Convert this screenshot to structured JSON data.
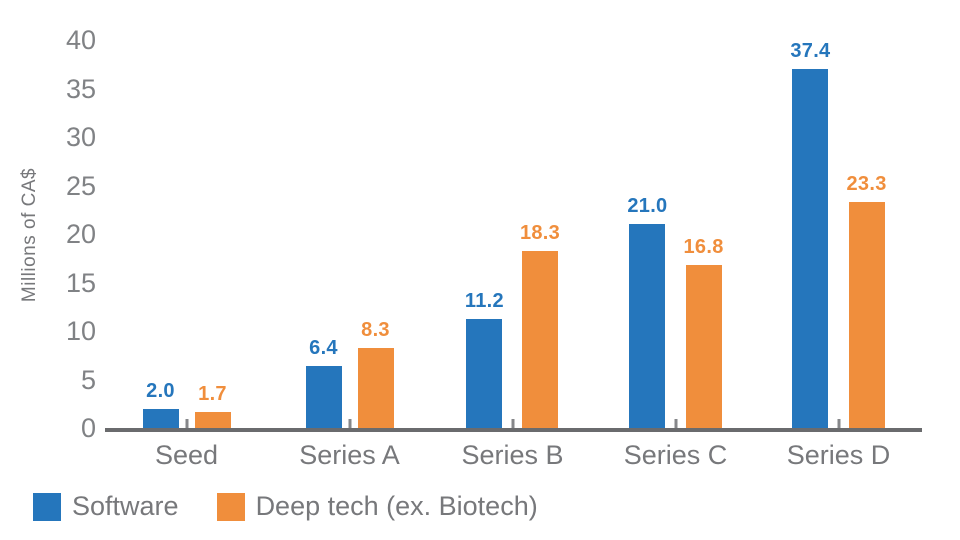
{
  "chart_data": {
    "type": "bar",
    "title": "",
    "categories": [
      "Seed",
      "Series A",
      "Series B",
      "Series C",
      "Series D"
    ],
    "series": [
      {
        "name": "Software",
        "color": "#2576BC",
        "values": [
          2.0,
          6.4,
          11.2,
          21.0,
          37.4
        ],
        "labels": [
          "2.0",
          "6.4",
          "11.2",
          "21.0",
          "37.4"
        ]
      },
      {
        "name": "Deep tech (ex. Biotech)",
        "color": "#F08E3C",
        "values": [
          1.7,
          8.3,
          18.3,
          16.8,
          23.3
        ],
        "labels": [
          "1.7",
          "8.3",
          "18.3",
          "16.8",
          "23.3"
        ]
      }
    ],
    "xlabel": "",
    "ylabel": "Millions of CA$",
    "ylim": [
      0,
      40
    ],
    "yticks": [
      0,
      5,
      10,
      15,
      20,
      25,
      30,
      35,
      40
    ],
    "grid": false,
    "legend_position": "bottom-left",
    "data_labels": true
  },
  "style": {
    "axis_line_color": "#6A6B6D",
    "tick_label_color": "#808285",
    "text_color": "#77787B",
    "background": "#FFFFFF"
  }
}
